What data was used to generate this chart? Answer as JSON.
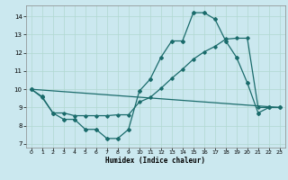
{
  "xlabel": "Humidex (Indice chaleur)",
  "bg_color": "#cbe8ef",
  "grid_color": "#b0d8d0",
  "line_color": "#1a6b6b",
  "xlim": [
    -0.5,
    23.5
  ],
  "ylim": [
    6.8,
    14.6
  ],
  "xticks": [
    0,
    1,
    2,
    3,
    4,
    5,
    6,
    7,
    8,
    9,
    10,
    11,
    12,
    13,
    14,
    15,
    16,
    17,
    18,
    19,
    20,
    21,
    22,
    23
  ],
  "yticks": [
    7,
    8,
    9,
    10,
    11,
    12,
    13,
    14
  ],
  "line1_x": [
    0,
    1,
    2,
    3,
    4,
    5,
    6,
    7,
    8,
    9,
    10,
    11,
    12,
    13,
    14,
    15,
    16,
    17,
    18,
    19,
    20,
    21,
    22,
    23
  ],
  "line1_y": [
    10.0,
    9.6,
    8.7,
    8.35,
    8.35,
    7.8,
    7.8,
    7.3,
    7.3,
    7.8,
    9.9,
    10.55,
    11.75,
    12.65,
    12.65,
    14.2,
    14.2,
    13.85,
    12.65,
    11.75,
    10.35,
    8.7,
    9.0,
    9.0
  ],
  "line2_x": [
    0,
    1,
    2,
    3,
    4,
    5,
    6,
    7,
    8,
    9,
    10,
    11,
    12,
    13,
    14,
    15,
    16,
    17,
    18,
    19,
    20,
    21,
    22,
    23
  ],
  "line2_y": [
    10.0,
    9.55,
    8.7,
    8.7,
    8.55,
    8.55,
    8.55,
    8.55,
    8.6,
    8.6,
    9.3,
    9.55,
    10.05,
    10.6,
    11.1,
    11.65,
    12.05,
    12.35,
    12.75,
    12.8,
    12.8,
    9.0,
    9.0,
    9.0
  ],
  "line3_x": [
    0,
    23
  ],
  "line3_y": [
    10.0,
    9.0
  ]
}
